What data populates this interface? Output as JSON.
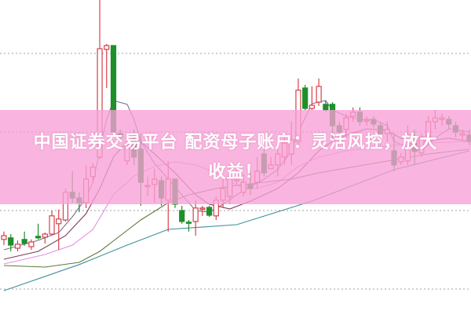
{
  "chart_data": {
    "type": "candlestick",
    "title": "",
    "xlabel": "",
    "ylabel": "",
    "ylim": [
      0,
      100
    ],
    "grid": {
      "horizontal": true,
      "style": "dotted",
      "levels": [
        83,
        58,
        33,
        8
      ]
    },
    "colors": {
      "up": "#d8404a",
      "down": "#1f8f2a",
      "grid": "#a0a0a0"
    },
    "candles": [
      [
        23.8,
        26.3,
        22.0,
        25.0
      ],
      [
        24.3,
        25.5,
        20.0,
        22.0
      ],
      [
        21.0,
        23.5,
        20.0,
        22.3
      ],
      [
        23.8,
        26.3,
        21.8,
        22.5
      ],
      [
        21.5,
        23.8,
        20.5,
        23.0
      ],
      [
        24.8,
        28.8,
        23.8,
        24.3
      ],
      [
        24.5,
        26.0,
        22.5,
        25.5
      ],
      [
        25.5,
        33.0,
        25.0,
        31.3
      ],
      [
        28.8,
        33.3,
        20.5,
        30.3
      ],
      [
        30.0,
        40.0,
        29.5,
        38.8
      ],
      [
        38.8,
        45.5,
        35.5,
        37.0
      ],
      [
        37.0,
        38.8,
        32.5,
        35.5
      ],
      [
        35.5,
        47.5,
        33.8,
        43.0
      ],
      [
        43.8,
        48.0,
        42.5,
        46.8
      ],
      [
        50.0,
        100.0,
        49.5,
        84.5
      ],
      [
        84.3,
        86.0,
        72.0,
        85.5
      ],
      [
        85.5,
        85.5,
        57.5,
        58.0
      ],
      [
        57.5,
        58.8,
        55.0,
        56.3
      ],
      [
        48.8,
        56.3,
        47.5,
        53.8
      ],
      [
        55.0,
        58.8,
        47.5,
        50.0
      ],
      [
        52.5,
        57.5,
        34.5,
        42.0
      ],
      [
        41.0,
        43.8,
        37.5,
        41.0
      ],
      [
        41.3,
        46.3,
        35.5,
        43.0
      ],
      [
        42.5,
        43.8,
        34.5,
        37.0
      ],
      [
        36.3,
        48.8,
        26.3,
        43.0
      ],
      [
        43.0,
        43.0,
        33.8,
        35.0
      ],
      [
        33.0,
        34.5,
        28.8,
        29.5
      ],
      [
        29.3,
        30.0,
        26.3,
        29.0
      ],
      [
        29.5,
        36.3,
        25.0,
        33.8
      ],
      [
        33.5,
        34.5,
        31.3,
        33.8
      ],
      [
        34.0,
        34.5,
        31.0,
        31.5
      ],
      [
        31.3,
        37.5,
        30.0,
        36.3
      ],
      [
        36.3,
        43.0,
        33.8,
        40.0
      ],
      [
        37.5,
        47.5,
        35.0,
        43.8
      ],
      [
        42.5,
        46.3,
        41.3,
        43.0
      ],
      [
        38.8,
        44.5,
        37.5,
        42.0
      ],
      [
        41.3,
        45.5,
        38.0,
        40.0
      ],
      [
        42.0,
        50.0,
        40.0,
        45.5
      ],
      [
        51.0,
        52.5,
        43.8,
        45.0
      ],
      [
        46.3,
        50.0,
        46.3,
        47.5
      ],
      [
        47.5,
        53.0,
        43.8,
        51.0
      ],
      [
        50.0,
        56.3,
        47.5,
        54.5
      ],
      [
        51.0,
        61.3,
        47.5,
        55.5
      ],
      [
        55.0,
        75.0,
        53.8,
        71.3
      ],
      [
        72.0,
        73.0,
        65.0,
        65.5
      ],
      [
        65.5,
        72.5,
        65.0,
        66.5
      ],
      [
        67.5,
        75.0,
        66.3,
        72.5
      ],
      [
        66.8,
        68.0,
        64.5,
        65.0
      ],
      [
        66.8,
        67.5,
        55.5,
        60.0
      ],
      [
        60.0,
        61.3,
        56.3,
        58.0
      ],
      [
        58.8,
        63.8,
        56.3,
        62.5
      ],
      [
        63.0,
        65.8,
        61.3,
        64.3
      ],
      [
        64.3,
        65.8,
        60.0,
        61.3
      ],
      [
        61.8,
        63.0,
        60.0,
        61.8
      ],
      [
        62.0,
        63.0,
        59.5,
        60.5
      ],
      [
        60.0,
        61.3,
        53.8,
        57.5
      ],
      [
        57.5,
        61.3,
        55.0,
        58.8
      ],
      [
        52.0,
        57.5,
        45.5,
        47.5
      ],
      [
        48.5,
        51.3,
        47.5,
        50.0
      ],
      [
        48.8,
        60.0,
        47.5,
        57.0
      ],
      [
        54.5,
        58.8,
        47.5,
        51.8
      ],
      [
        51.3,
        57.5,
        50.0,
        56.3
      ],
      [
        56.3,
        63.0,
        55.0,
        61.3
      ],
      [
        61.3,
        65.0,
        58.8,
        62.5
      ],
      [
        62.0,
        63.8,
        60.0,
        62.5
      ],
      [
        62.0,
        63.0,
        58.8,
        60.5
      ],
      [
        60.0,
        61.3,
        56.3,
        58.0
      ],
      [
        57.0,
        58.8,
        55.5,
        57.5
      ],
      [
        57.0,
        58.8,
        53.8,
        55.0
      ]
    ],
    "candle_fields": [
      "open",
      "high",
      "low",
      "close"
    ],
    "moving_averages": [
      {
        "color": "#7d7090",
        "points": [
          [
            0,
            20.5
          ],
          [
            5,
            23.5
          ],
          [
            8,
            26
          ],
          [
            10,
            31
          ],
          [
            12,
            37
          ],
          [
            13,
            42
          ],
          [
            14,
            52
          ],
          [
            15,
            62
          ],
          [
            16,
            68
          ],
          [
            18,
            66.8
          ],
          [
            19,
            62
          ],
          [
            20,
            55
          ],
          [
            22,
            48
          ],
          [
            24,
            43
          ],
          [
            26,
            38
          ],
          [
            28,
            33
          ],
          [
            30,
            32.5
          ],
          [
            32,
            35
          ],
          [
            34,
            38
          ],
          [
            36,
            40.5
          ],
          [
            38,
            43
          ],
          [
            40,
            46
          ],
          [
            42,
            52
          ],
          [
            43,
            58
          ],
          [
            45,
            67
          ],
          [
            47,
            68
          ],
          [
            48,
            65
          ],
          [
            50,
            63
          ],
          [
            52,
            62
          ],
          [
            54,
            62
          ],
          [
            56,
            60
          ],
          [
            57,
            55
          ],
          [
            59,
            53
          ],
          [
            61,
            52
          ],
          [
            63,
            56
          ],
          [
            65,
            59
          ],
          [
            68,
            58
          ]
        ]
      },
      {
        "color": "#7a3c5e",
        "points": [
          [
            0,
            17.5
          ],
          [
            5,
            20
          ],
          [
            9,
            25
          ],
          [
            12,
            32
          ],
          [
            14,
            40
          ],
          [
            16,
            50
          ],
          [
            18,
            55
          ],
          [
            19,
            56
          ],
          [
            20,
            55
          ],
          [
            22,
            51
          ],
          [
            25,
            45
          ],
          [
            28,
            38
          ],
          [
            30,
            35
          ],
          [
            33,
            33.5
          ],
          [
            36,
            36
          ],
          [
            40,
            40
          ],
          [
            43,
            45
          ],
          [
            46,
            52
          ],
          [
            48,
            55
          ],
          [
            50,
            57
          ],
          [
            53,
            59
          ],
          [
            56,
            58.5
          ],
          [
            58,
            56
          ],
          [
            61,
            55
          ],
          [
            65,
            56
          ],
          [
            68,
            55
          ]
        ]
      },
      {
        "color": "#e58ee0",
        "points": [
          [
            0,
            16
          ],
          [
            6,
            19
          ],
          [
            10,
            22
          ],
          [
            13,
            27
          ],
          [
            16,
            38
          ],
          [
            19,
            44
          ],
          [
            22,
            47
          ],
          [
            25,
            48.5
          ],
          [
            28,
            47.5
          ],
          [
            31,
            45
          ],
          [
            34,
            41
          ],
          [
            37,
            40
          ],
          [
            40,
            42
          ],
          [
            43,
            47
          ],
          [
            46,
            50
          ],
          [
            50,
            52
          ],
          [
            54,
            53
          ],
          [
            58,
            54
          ],
          [
            62,
            54.5
          ],
          [
            68,
            55
          ]
        ]
      },
      {
        "color": "#5c7a3c",
        "points": [
          [
            0,
            15.5
          ],
          [
            6,
            15
          ],
          [
            11,
            16.5
          ],
          [
            14,
            20
          ],
          [
            17,
            25
          ],
          [
            20,
            30
          ],
          [
            24,
            35.5
          ],
          [
            27,
            38
          ],
          [
            31,
            40
          ],
          [
            34,
            41
          ],
          [
            38,
            42
          ],
          [
            42,
            43
          ],
          [
            46,
            45
          ],
          [
            50,
            46.5
          ],
          [
            54,
            48
          ],
          [
            58,
            49.5
          ],
          [
            62,
            51
          ],
          [
            68,
            52.5
          ]
        ]
      },
      {
        "color": "#3d8f9c",
        "points": [
          [
            0,
            7.5
          ],
          [
            11,
            15.8
          ],
          [
            18,
            22
          ],
          [
            24,
            27
          ],
          [
            34,
            28.5
          ],
          [
            45,
            36
          ],
          [
            57,
            46
          ],
          [
            68,
            52
          ]
        ]
      }
    ]
  },
  "banner": {
    "line1": "中国证券交易平台 配资母子账户：灵活风控，放大",
    "line2": "收益！",
    "color": "#f7a0d6"
  }
}
